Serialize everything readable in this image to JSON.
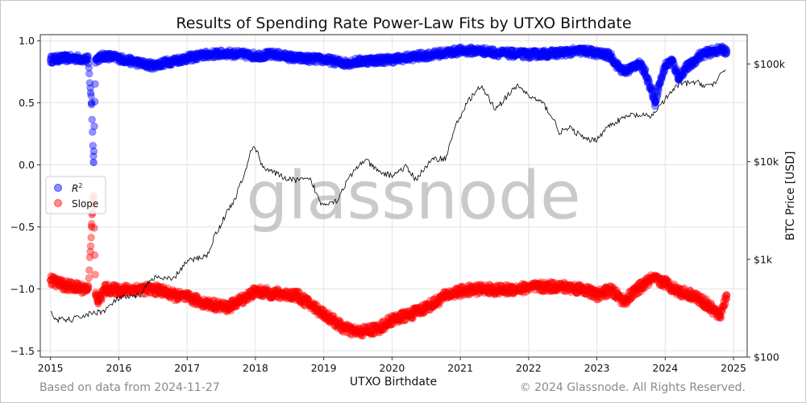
{
  "chart_data": {
    "type": "scatter",
    "title": "Results of Spending Rate Power-Law Fits by UTXO Birthdate",
    "xlabel": "UTXO Birthdate",
    "ylabel_right": "BTC Price [USD]",
    "xlim": [
      2014.85,
      2025.2
    ],
    "ylim": [
      -1.55,
      1.05
    ],
    "ylim_right_log10": [
      2,
      5.3
    ],
    "xticks": [
      2015,
      2016,
      2017,
      2018,
      2019,
      2020,
      2021,
      2022,
      2023,
      2024,
      2025
    ],
    "xtick_labels": [
      "2015",
      "2016",
      "2017",
      "2018",
      "2019",
      "2020",
      "2021",
      "2022",
      "2023",
      "2024",
      "2025"
    ],
    "yticks": [
      -1.5,
      -1.0,
      -0.5,
      0.0,
      0.5,
      1.0
    ],
    "ytick_labels": [
      "−1.5",
      "−1.0",
      "−0.5",
      "0.0",
      "0.5",
      "1.0"
    ],
    "yticks_right": [
      100,
      1000,
      10000,
      100000
    ],
    "ytick_right_labels": [
      "$100",
      "$1k",
      "$10k",
      "$100k"
    ],
    "grid": true,
    "legend_position": "middle-left",
    "legend": [
      {
        "label": "R²",
        "label_base": "R",
        "label_sup": "2",
        "color": "#0000ff"
      },
      {
        "label": "Slope",
        "color": "#ff0000"
      }
    ],
    "watermark": "glassnode",
    "series": [
      {
        "name": "R²",
        "kind": "scatter",
        "color": "#0000ff",
        "spread": 0.03,
        "x": [
          2015.0,
          2015.2,
          2015.4,
          2015.55,
          2015.6,
          2015.63,
          2015.66,
          2015.7,
          2015.8,
          2016.0,
          2016.3,
          2016.5,
          2016.8,
          2017.0,
          2017.3,
          2017.6,
          2018.0,
          2018.3,
          2018.6,
          2019.0,
          2019.3,
          2019.6,
          2020.0,
          2020.3,
          2020.6,
          2021.0,
          2021.3,
          2021.6,
          2022.0,
          2022.4,
          2022.8,
          2023.0,
          2023.2,
          2023.3,
          2023.4,
          2023.5,
          2023.6,
          2023.7,
          2023.8,
          2023.85,
          2023.9,
          2024.0,
          2024.1,
          2024.2,
          2024.3,
          2024.4,
          2024.5,
          2024.6,
          2024.8,
          2024.9
        ],
        "y": [
          0.85,
          0.86,
          0.86,
          0.85,
          0.5,
          0.02,
          0.85,
          0.86,
          0.88,
          0.86,
          0.82,
          0.8,
          0.84,
          0.86,
          0.89,
          0.9,
          0.88,
          0.89,
          0.86,
          0.85,
          0.82,
          0.84,
          0.85,
          0.87,
          0.89,
          0.92,
          0.92,
          0.9,
          0.89,
          0.9,
          0.92,
          0.9,
          0.88,
          0.8,
          0.75,
          0.78,
          0.82,
          0.76,
          0.6,
          0.5,
          0.62,
          0.8,
          0.84,
          0.7,
          0.78,
          0.82,
          0.88,
          0.9,
          0.93,
          0.92
        ]
      },
      {
        "name": "Slope",
        "kind": "scatter",
        "color": "#ff0000",
        "spread": 0.04,
        "x": [
          2015.0,
          2015.2,
          2015.4,
          2015.55,
          2015.6,
          2015.63,
          2015.66,
          2015.7,
          2015.8,
          2016.0,
          2016.3,
          2016.6,
          2016.8,
          2017.0,
          2017.3,
          2017.6,
          2018.0,
          2018.3,
          2018.6,
          2019.0,
          2019.3,
          2019.5,
          2019.8,
          2020.0,
          2020.3,
          2020.6,
          2020.8,
          2021.0,
          2021.3,
          2021.6,
          2022.0,
          2022.4,
          2022.8,
          2023.0,
          2023.2,
          2023.4,
          2023.6,
          2023.8,
          2024.0,
          2024.2,
          2024.4,
          2024.6,
          2024.8,
          2024.9
        ],
        "y": [
          -0.93,
          -0.97,
          -0.99,
          -1.0,
          -0.5,
          -0.25,
          -1.05,
          -1.1,
          -1.0,
          -1.01,
          -1.0,
          -1.01,
          -1.05,
          -1.07,
          -1.12,
          -1.15,
          -1.02,
          -1.04,
          -1.05,
          -1.2,
          -1.32,
          -1.35,
          -1.32,
          -1.25,
          -1.2,
          -1.12,
          -1.05,
          -1.02,
          -1.0,
          -1.01,
          -0.99,
          -0.98,
          -1.0,
          -1.05,
          -1.01,
          -1.1,
          -1.0,
          -0.92,
          -0.95,
          -1.02,
          -1.05,
          -1.12,
          -1.22,
          -1.05
        ]
      },
      {
        "name": "BTC Price [USD]",
        "kind": "line",
        "axis": "right",
        "color": "#000000",
        "x": [
          2015.0,
          2015.1,
          2015.3,
          2015.6,
          2015.8,
          2016.0,
          2016.3,
          2016.5,
          2016.8,
          2017.0,
          2017.3,
          2017.5,
          2017.7,
          2017.85,
          2017.97,
          2018.1,
          2018.3,
          2018.5,
          2018.8,
          2018.95,
          2019.2,
          2019.45,
          2019.6,
          2019.8,
          2020.0,
          2020.2,
          2020.35,
          2020.6,
          2020.8,
          2021.0,
          2021.15,
          2021.3,
          2021.5,
          2021.6,
          2021.85,
          2022.0,
          2022.2,
          2022.45,
          2022.6,
          2022.85,
          2023.0,
          2023.2,
          2023.5,
          2023.8,
          2024.0,
          2024.2,
          2024.45,
          2024.6,
          2024.75,
          2024.88
        ],
        "y": [
          280,
          240,
          240,
          280,
          300,
          400,
          420,
          650,
          620,
          950,
          1100,
          2300,
          4100,
          7500,
          15000,
          9000,
          7500,
          6500,
          6500,
          3700,
          4000,
          8000,
          10500,
          7800,
          7200,
          8800,
          6500,
          10500,
          11000,
          29000,
          45000,
          58000,
          35000,
          40000,
          60000,
          47000,
          40000,
          20000,
          22000,
          16500,
          17000,
          24000,
          30000,
          29000,
          43000,
          62000,
          65000,
          60000,
          64000,
          90000
        ]
      }
    ]
  },
  "footer": {
    "left": "Based on data from 2024-11-27",
    "right": "© 2024 Glassnode. All Rights Reserved."
  }
}
